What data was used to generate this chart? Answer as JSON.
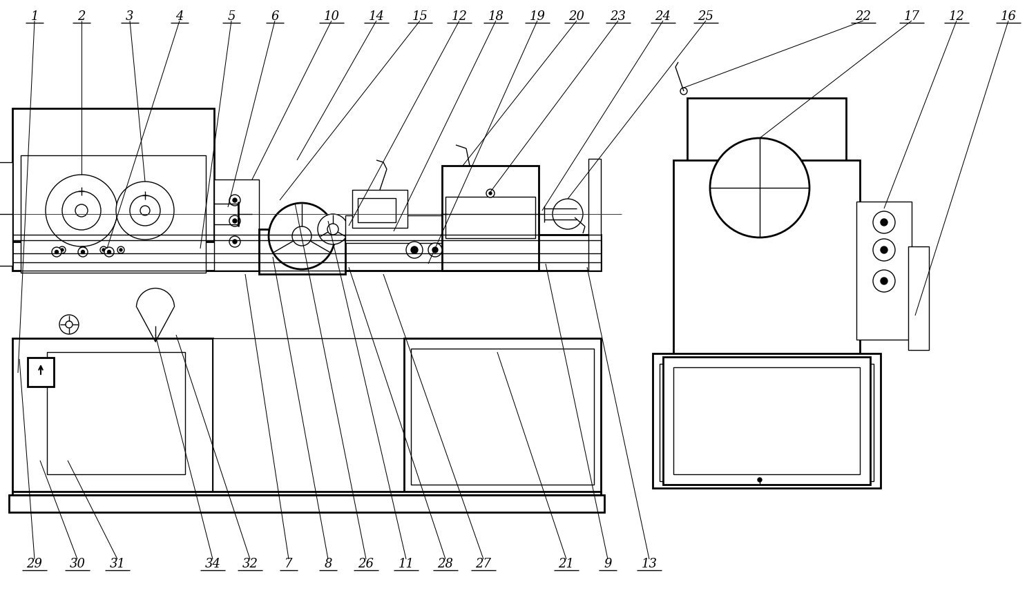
{
  "bg_color": "#ffffff",
  "lc": "#000000",
  "lw": 1.0,
  "tlw": 2.0,
  "fw": 15.0,
  "fh": 8.72
}
